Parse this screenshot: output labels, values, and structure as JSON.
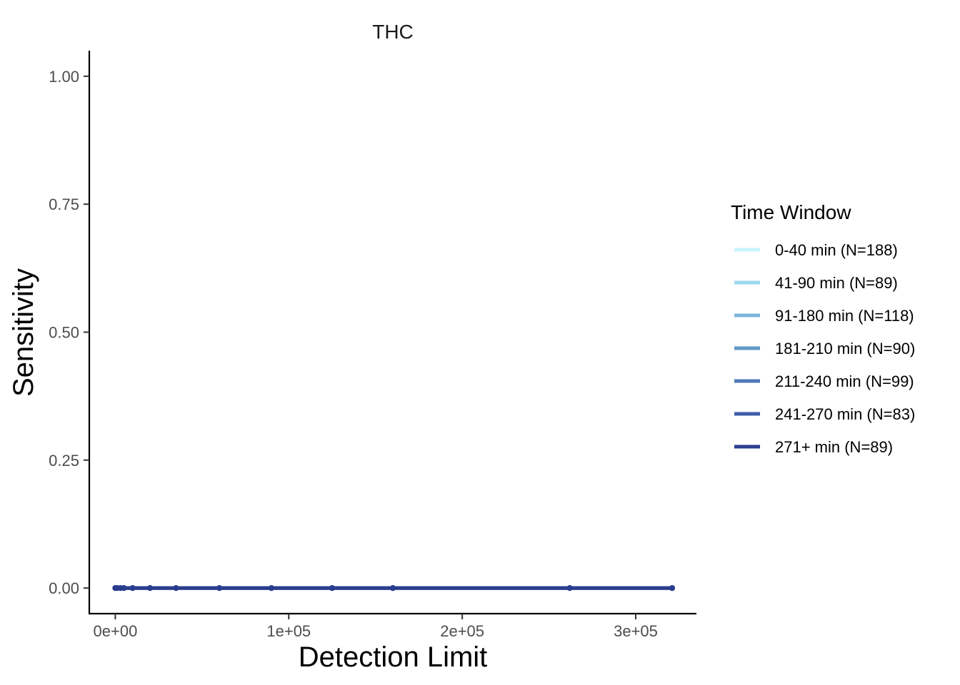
{
  "chart_data": {
    "type": "line",
    "title": "THC",
    "xlabel": "Detection Limit",
    "ylabel": "Sensitivity",
    "xlim": [
      -15000,
      335000
    ],
    "ylim": [
      -0.05,
      1.05
    ],
    "x_ticks": [
      0,
      100000,
      200000,
      300000
    ],
    "x_tick_labels": [
      "0e+00",
      "1e+05",
      "2e+05",
      "3e+05"
    ],
    "y_ticks": [
      0,
      0.25,
      0.5,
      0.75,
      1.0
    ],
    "y_tick_labels": [
      "0.00",
      "0.25",
      "0.50",
      "0.75",
      "1.00"
    ],
    "grid": false,
    "legend": {
      "title": "Time Window",
      "position": "right"
    },
    "series": [
      {
        "name": "0-40 min (N=188)",
        "color": "#c6f5fb",
        "x": [
          0,
          1000,
          3000,
          5000,
          10000,
          20000,
          35000,
          60000,
          90000,
          125000,
          160000,
          262000,
          321000
        ],
        "y": [
          0,
          0,
          0,
          0,
          0,
          0,
          0,
          0,
          0,
          0,
          0,
          0,
          0
        ]
      },
      {
        "name": "41-90 min (N=89)",
        "color": "#9ed8ee",
        "x": [
          0,
          1000,
          3000,
          5000,
          10000,
          20000,
          35000,
          60000,
          90000,
          125000,
          160000,
          262000,
          321000
        ],
        "y": [
          0,
          0,
          0,
          0,
          0,
          0,
          0,
          0,
          0,
          0,
          0,
          0,
          0
        ]
      },
      {
        "name": "91-180 min (N=118)",
        "color": "#7eb6dc",
        "x": [
          0,
          1000,
          3000,
          5000,
          10000,
          20000,
          35000,
          60000,
          90000,
          125000,
          160000,
          262000,
          321000
        ],
        "y": [
          0,
          0,
          0,
          0,
          0,
          0,
          0,
          0,
          0,
          0,
          0,
          0,
          0
        ]
      },
      {
        "name": "181-210 min (N=90)",
        "color": "#6297c8",
        "x": [
          0,
          1000,
          3000,
          5000,
          10000,
          20000,
          35000,
          60000,
          90000,
          125000,
          160000,
          262000,
          321000
        ],
        "y": [
          0,
          0,
          0,
          0,
          0,
          0,
          0,
          0,
          0,
          0,
          0,
          0,
          0
        ]
      },
      {
        "name": "211-240 min (N=99)",
        "color": "#4e79b7",
        "x": [
          0,
          1000,
          3000,
          5000,
          10000,
          20000,
          35000,
          60000,
          90000,
          125000,
          160000,
          262000,
          321000
        ],
        "y": [
          0,
          0,
          0,
          0,
          0,
          0,
          0,
          0,
          0,
          0,
          0,
          0,
          0
        ]
      },
      {
        "name": "241-270 min (N=83)",
        "color": "#3e5ba8",
        "x": [
          0,
          1000,
          3000,
          5000,
          10000,
          20000,
          35000,
          60000,
          90000,
          125000,
          160000,
          262000,
          321000
        ],
        "y": [
          0,
          0,
          0,
          0,
          0,
          0,
          0,
          0,
          0,
          0,
          0,
          0,
          0
        ]
      },
      {
        "name": "271+ min (N=89)",
        "color": "#2b3d8e",
        "x": [
          0,
          1000,
          3000,
          5000,
          10000,
          20000,
          35000,
          60000,
          90000,
          125000,
          160000,
          262000,
          321000
        ],
        "y": [
          0,
          0,
          0,
          0,
          0,
          0,
          0,
          0,
          0,
          0,
          0,
          0,
          0
        ]
      }
    ]
  }
}
